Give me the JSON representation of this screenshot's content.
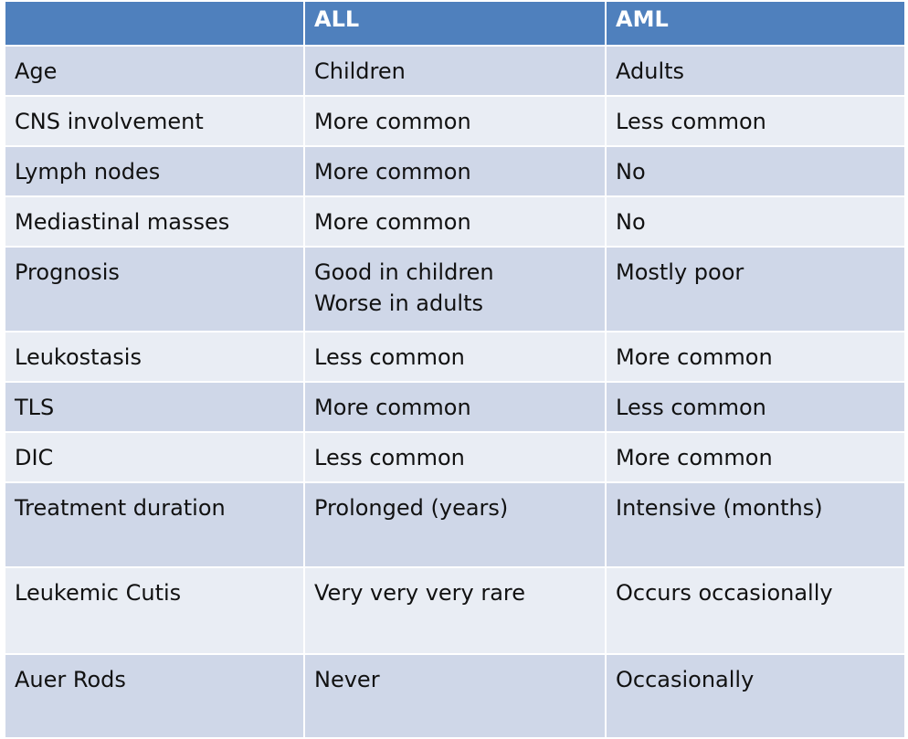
{
  "table": {
    "columns": [
      "",
      "ALL",
      "AML"
    ],
    "rows": [
      {
        "feature": "Age",
        "all": [
          "Children"
        ],
        "aml": "Adults"
      },
      {
        "feature": "CNS involvement",
        "all": [
          "More common"
        ],
        "aml": "Less common"
      },
      {
        "feature": "Lymph nodes",
        "all": [
          "More common"
        ],
        "aml": "No"
      },
      {
        "feature": "Mediastinal masses",
        "all": [
          "More common"
        ],
        "aml": "No"
      },
      {
        "feature": "Prognosis",
        "all": [
          "Good in children",
          "Worse in adults"
        ],
        "aml": "Mostly poor"
      },
      {
        "feature": "Leukostasis",
        "all": [
          "Less common"
        ],
        "aml": "More common"
      },
      {
        "feature": "TLS",
        "all": [
          "More common"
        ],
        "aml": "Less common"
      },
      {
        "feature": "DIC",
        "all": [
          "Less common"
        ],
        "aml": "More common"
      },
      {
        "feature": "Treatment duration",
        "all": [
          "Prolonged (years)"
        ],
        "aml": "Intensive (months)"
      },
      {
        "feature": "Leukemic Cutis",
        "all": [
          "Very very very rare"
        ],
        "aml": "Occurs occasionally"
      },
      {
        "feature": "Auer Rods",
        "all": [
          "Never"
        ],
        "aml": "Occasionally"
      }
    ]
  },
  "colors": {
    "header_bg": "#4f80bd",
    "row_dark": "#cfd7e8",
    "row_light": "#e9edf4"
  }
}
